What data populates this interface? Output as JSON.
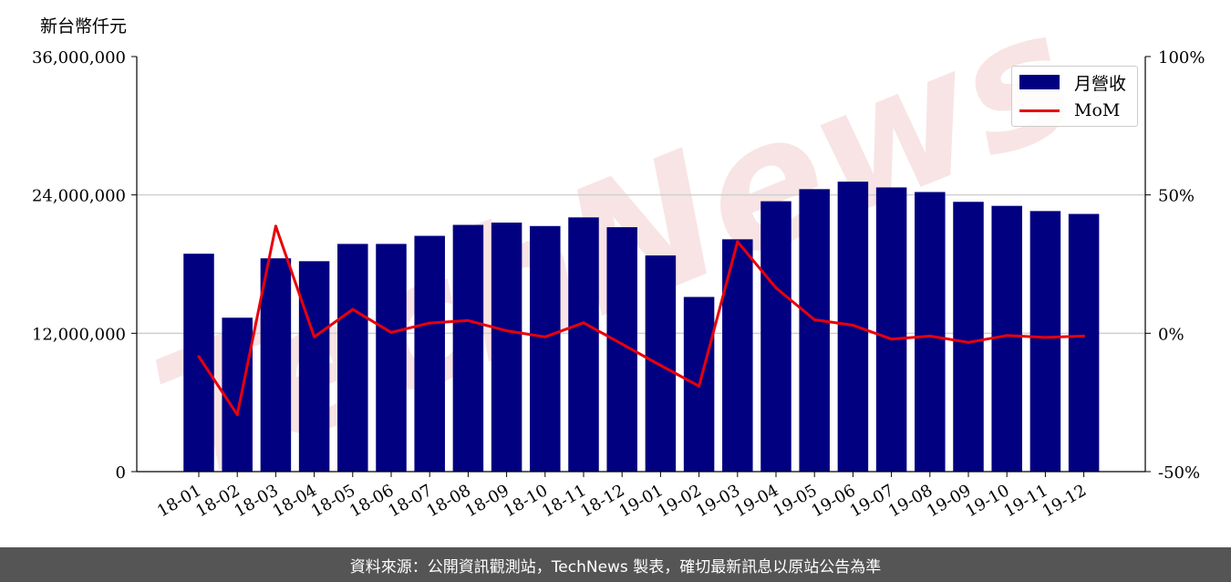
{
  "chart_data": {
    "type": "bar",
    "categories": [
      "18-01",
      "18-02",
      "18-03",
      "18-04",
      "18-05",
      "18-06",
      "18-07",
      "18-08",
      "18-09",
      "18-10",
      "18-11",
      "18-12",
      "19-01",
      "19-02",
      "19-03",
      "19-04",
      "19-05",
      "19-06",
      "19-07",
      "19-08",
      "19-09",
      "19-10",
      "19-11",
      "19-12"
    ],
    "series": [
      {
        "name": "月營收",
        "type": "bar",
        "axis": "left",
        "color": "#000080",
        "values": [
          18900000,
          13350000,
          18500000,
          18250000,
          19750000,
          19750000,
          20450000,
          21400000,
          21600000,
          21300000,
          22050000,
          21200000,
          18750000,
          15150000,
          20150000,
          23450000,
          24500000,
          25150000,
          24650000,
          24250000,
          23400000,
          23050000,
          22600000,
          22350000
        ]
      },
      {
        "name": "MoM",
        "type": "line",
        "axis": "right",
        "color": "#e8000b",
        "values": [
          -8.4,
          -29.4,
          38.7,
          -1.3,
          8.6,
          0.3,
          3.7,
          4.6,
          0.9,
          -1.3,
          3.8,
          -3.9,
          -11.6,
          -19.1,
          33.1,
          16.4,
          4.9,
          2.9,
          -2.1,
          -1.0,
          -3.3,
          -0.8,
          -1.5,
          -1.0
        ]
      }
    ],
    "ylabel": "新台幣仟元",
    "ylim": [
      0,
      36000000
    ],
    "yticks": [
      "0",
      "12,000,000",
      "24,000,000",
      "36,000,000"
    ],
    "y2lim": [
      -50,
      100
    ],
    "y2ticks": [
      "-50%",
      "0%",
      "50%",
      "100%"
    ],
    "grid": "horizontal",
    "legend_position": "top-right"
  },
  "watermark": "TechNews",
  "footer_text": "資料來源：公開資訊觀測站，TechNews 製表，確切最新訊息以原站公告為準"
}
